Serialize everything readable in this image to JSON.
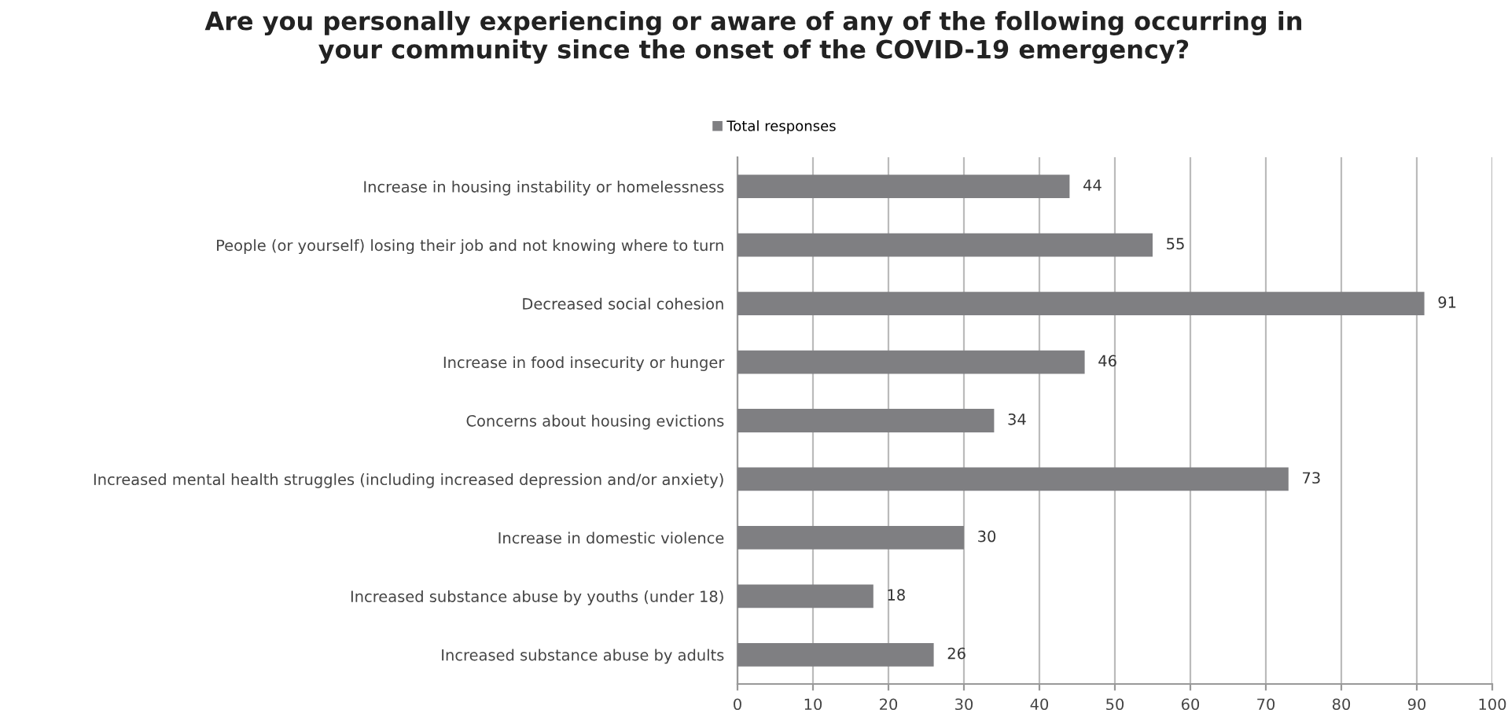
{
  "chart_data": {
    "type": "bar",
    "orientation": "horizontal",
    "title": "Are you personally experiencing or aware of any of the following occurring in\nyour community since the onset of the COVID-19 emergency?",
    "categories": [
      "Increase in housing instability or homelessness",
      "People (or yourself) losing their job and not knowing where to turn",
      "Decreased social cohesion",
      "Increase in food insecurity or hunger",
      "Concerns about housing evictions",
      "Increased mental health struggles (including increased depression and/or anxiety)",
      "Increase in domestic violence",
      "Increased substance abuse by youths (under 18)",
      "Increased substance abuse by adults"
    ],
    "series": [
      {
        "name": "Total responses",
        "color": "#7f7f82",
        "values": [
          44,
          55,
          91,
          46,
          34,
          73,
          30,
          18,
          26
        ]
      }
    ],
    "xlim": [
      0,
      100
    ],
    "xticks": [
      0,
      10,
      20,
      30,
      40,
      50,
      60,
      70,
      80,
      90,
      100
    ],
    "grid": "x",
    "legend": "top",
    "data_labels": true
  }
}
